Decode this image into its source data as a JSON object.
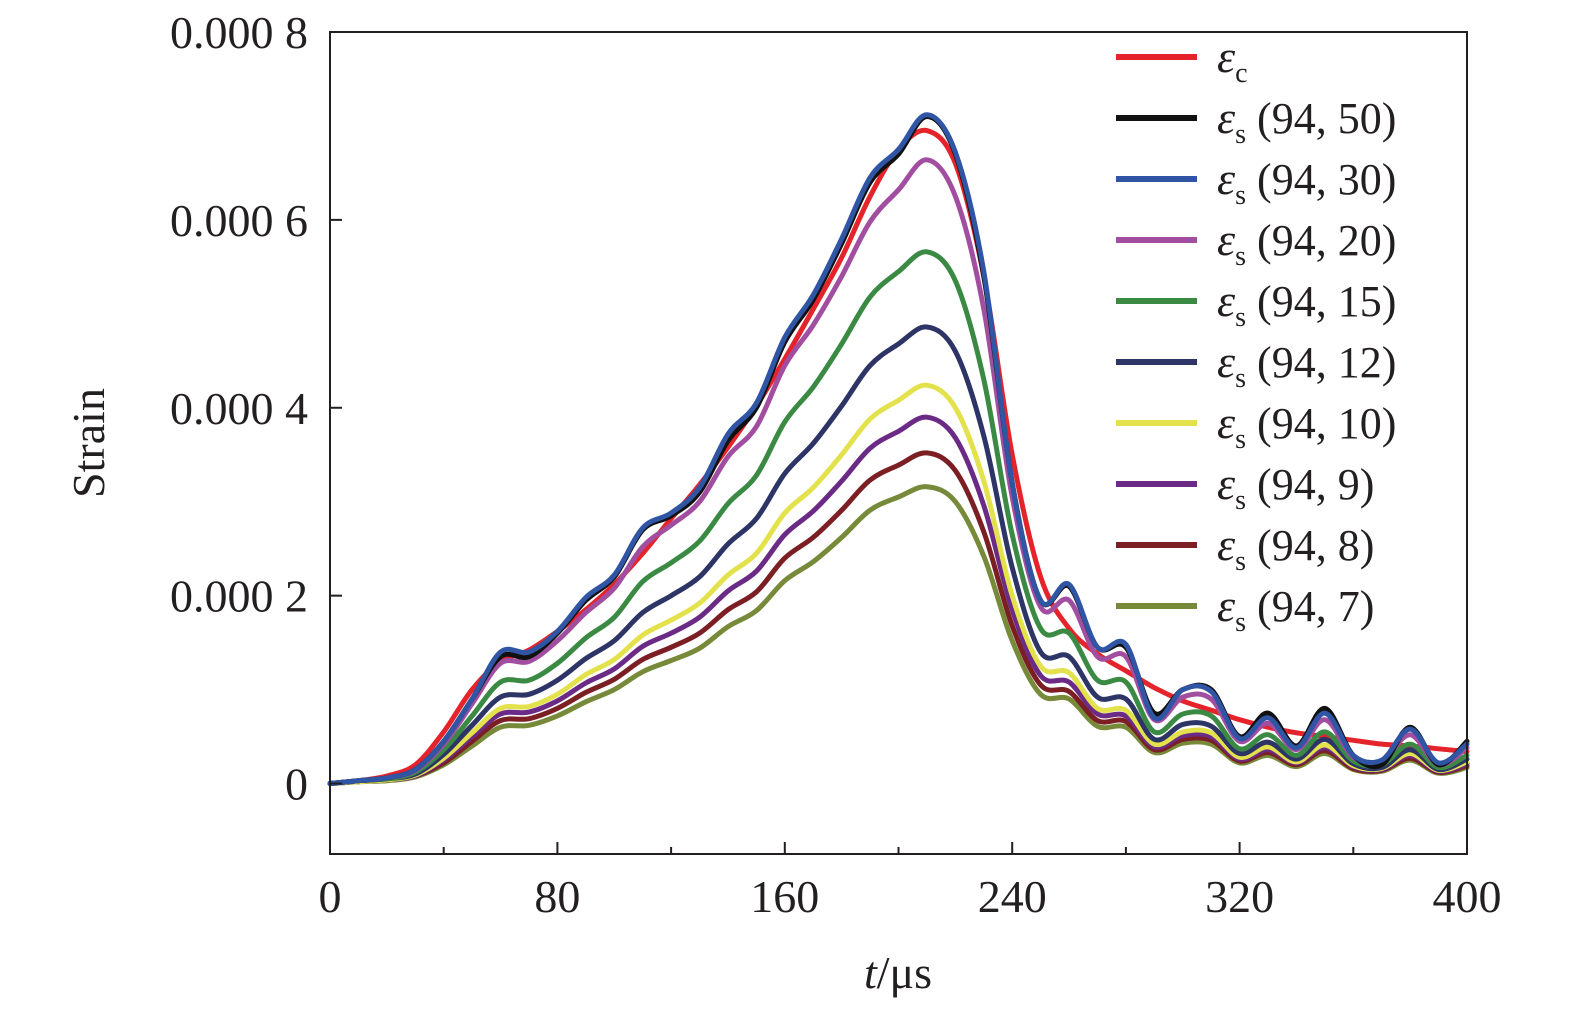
{
  "chart_data": {
    "type": "line",
    "xlabel_italic": "t",
    "xlabel_unit": "/μs",
    "ylabel": "Strain",
    "xlim": [
      0,
      400
    ],
    "ylim": [
      -7.5e-05,
      0.0008
    ],
    "x_ticks": [
      0,
      80,
      160,
      240,
      320,
      400
    ],
    "x_tick_labels": [
      "0",
      "80",
      "160",
      "240",
      "320",
      "400"
    ],
    "y_ticks": [
      0,
      0.0002,
      0.0004,
      0.0006,
      0.0008
    ],
    "y_tick_labels": [
      "0",
      "0.000 2",
      "0.000 4",
      "0.000 6",
      "0.000 8"
    ],
    "grid": false,
    "legend_position": "top-right",
    "legend_symbol": "ε",
    "x": [
      0,
      10,
      20,
      30,
      40,
      50,
      60,
      70,
      80,
      90,
      100,
      110,
      120,
      130,
      140,
      150,
      160,
      170,
      180,
      190,
      200,
      210,
      220,
      230,
      240,
      250,
      260,
      270,
      280,
      290,
      300,
      310,
      320,
      330,
      340,
      350,
      360,
      370,
      380,
      390,
      400
    ],
    "series": [
      {
        "sub": "c",
        "pair": "",
        "color": "#e4232b",
        "values": [
          0,
          3e-06,
          8e-06,
          2e-05,
          5.5e-05,
          0.0001,
          0.00013,
          0.000142,
          0.000162,
          0.000185,
          0.000212,
          0.000245,
          0.000282,
          0.000318,
          0.000358,
          0.000402,
          0.000452,
          0.000505,
          0.00056,
          0.000625,
          0.000675,
          0.000695,
          0.00066,
          0.00054,
          0.00035,
          0.00022,
          0.000165,
          0.000138,
          0.00012,
          0.000102,
          8.8e-05,
          7.8e-05,
          6.8e-05,
          6e-05,
          5.4e-05,
          5e-05,
          4.6e-05,
          4.2e-05,
          4e-05,
          3.7e-05,
          3.4e-05
        ]
      },
      {
        "sub": "s",
        "pair": " (94, 50)",
        "color": "#111111",
        "values": [
          0,
          3e-06,
          6e-06,
          1.5e-05,
          4.5e-05,
          9e-05,
          0.000135,
          0.000135,
          0.00016,
          0.000195,
          0.00022,
          0.00027,
          0.000285,
          0.00031,
          0.000365,
          0.0004,
          0.00047,
          0.000515,
          0.000575,
          0.00064,
          0.00067,
          0.00071,
          0.00067,
          0.00054,
          0.00032,
          0.000195,
          0.00021,
          0.000145,
          0.000145,
          7.5e-05,
          0.0001,
          0.0001,
          5e-05,
          7.5e-05,
          4e-05,
          8e-05,
          3e-05,
          2e-05,
          6e-05,
          2e-05,
          4.5e-05
        ]
      },
      {
        "sub": "s",
        "pair": " (94, 30)",
        "color": "#2f55a4",
        "values": [
          0,
          3e-06,
          6e-06,
          1.5e-05,
          4.5e-05,
          9e-05,
          0.00014,
          0.00014,
          0.000162,
          0.000198,
          0.000222,
          0.000272,
          0.000288,
          0.000315,
          0.000372,
          0.000405,
          0.000475,
          0.00052,
          0.00058,
          0.000645,
          0.000675,
          0.000712,
          0.000672,
          0.000545,
          0.00032,
          0.000195,
          0.000212,
          0.000145,
          0.000148,
          7e-05,
          0.0001,
          9.8e-05,
          4.8e-05,
          7e-05,
          3.8e-05,
          7.5e-05,
          3e-05,
          2.5e-05,
          5.8e-05,
          2.2e-05,
          4.2e-05
        ]
      },
      {
        "sub": "s",
        "pair": " (94, 20)",
        "color": "#a24ea0",
        "values": [
          0,
          3e-06,
          6e-06,
          1.4e-05,
          4.2e-05,
          8.5e-05,
          0.000128,
          0.00013,
          0.000152,
          0.000182,
          0.000208,
          0.000252,
          0.000275,
          0.0003,
          0.000348,
          0.00038,
          0.000445,
          0.000488,
          0.00054,
          0.000598,
          0.000632,
          0.000664,
          0.000625,
          0.000505,
          0.000305,
          0.000188,
          0.000195,
          0.000135,
          0.000135,
          6.8e-05,
          9.2e-05,
          9e-05,
          4.5e-05,
          6.4e-05,
          3.6e-05,
          6.8e-05,
          2.8e-05,
          2.4e-05,
          5.2e-05,
          2e-05,
          3.8e-05
        ]
      },
      {
        "sub": "s",
        "pair": " (94, 15)",
        "color": "#3a8a44",
        "values": [
          0,
          3e-06,
          5e-06,
          1.2e-05,
          3.6e-05,
          7.2e-05,
          0.000108,
          0.00011,
          0.000128,
          0.000155,
          0.000177,
          0.000215,
          0.000235,
          0.000258,
          0.000298,
          0.000328,
          0.000385,
          0.000422,
          0.000468,
          0.000518,
          0.000545,
          0.000566,
          0.000535,
          0.00043,
          0.000265,
          0.000165,
          0.00016,
          0.00011,
          0.000108,
          5.5e-05,
          7.4e-05,
          7.2e-05,
          3.7e-05,
          5.2e-05,
          3e-05,
          5.5e-05,
          2.4e-05,
          2e-05,
          4.2e-05,
          1.7e-05,
          3e-05
        ]
      },
      {
        "sub": "s",
        "pair": " (94, 12)",
        "color": "#2d3466",
        "values": [
          0,
          3e-06,
          5e-06,
          1e-05,
          3.1e-05,
          6.2e-05,
          9.2e-05,
          9.5e-05,
          0.00011,
          0.000133,
          0.000152,
          0.000182,
          0.0002,
          0.00022,
          0.000255,
          0.000282,
          0.00033,
          0.000362,
          0.000402,
          0.000445,
          0.000468,
          0.000486,
          0.00046,
          0.00037,
          0.00023,
          0.00014,
          0.000135,
          9.2e-05,
          9e-05,
          4.7e-05,
          6.3e-05,
          6.1e-05,
          3.2e-05,
          4.4e-05,
          2.6e-05,
          4.7e-05,
          2.1e-05,
          1.7e-05,
          3.6e-05,
          1.5e-05,
          2.6e-05
        ]
      },
      {
        "sub": "s",
        "pair": " (94, 10)",
        "color": "#e3e24c",
        "values": [
          0,
          2e-06,
          4e-06,
          9e-06,
          2.7e-05,
          5.4e-05,
          8e-05,
          8.2e-05,
          9.5e-05,
          0.000116,
          0.000132,
          0.000158,
          0.000174,
          0.000192,
          0.000222,
          0.000245,
          0.000288,
          0.000315,
          0.00035,
          0.000388,
          0.000408,
          0.000424,
          0.0004,
          0.000322,
          0.0002,
          0.000125,
          0.000118,
          8e-05,
          7.8e-05,
          4.2e-05,
          5.5e-05,
          5.4e-05,
          2.8e-05,
          3.9e-05,
          2.3e-05,
          4.1e-05,
          1.9e-05,
          1.6e-05,
          3.2e-05,
          1.4e-05,
          2.3e-05
        ]
      },
      {
        "sub": "s",
        "pair": " (94, 9)",
        "color": "#6b2a85",
        "values": [
          0,
          2e-06,
          4e-06,
          8e-06,
          2.5e-05,
          5e-05,
          7.4e-05,
          7.6e-05,
          8.8e-05,
          0.000107,
          0.000122,
          0.000146,
          0.00016,
          0.000177,
          0.000205,
          0.000226,
          0.000265,
          0.00029,
          0.000322,
          0.000357,
          0.000375,
          0.00039,
          0.000368,
          0.000296,
          0.000185,
          0.000115,
          0.000108,
          7.4e-05,
          7.2e-05,
          3.9e-05,
          5.1e-05,
          5e-05,
          2.6e-05,
          3.6e-05,
          2.2e-05,
          3.8e-05,
          1.8e-05,
          1.5e-05,
          3e-05,
          1.3e-05,
          2.1e-05
        ]
      },
      {
        "sub": "s",
        "pair": " (94, 8)",
        "color": "#7b1f24",
        "values": [
          0,
          2e-06,
          4e-06,
          8e-06,
          2.2e-05,
          4.5e-05,
          6.7e-05,
          6.9e-05,
          8e-05,
          9.7e-05,
          0.000111,
          0.000132,
          0.000145,
          0.00016,
          0.000185,
          0.000204,
          0.00024,
          0.000262,
          0.000291,
          0.000323,
          0.000339,
          0.000352,
          0.000333,
          0.000268,
          0.000168,
          0.000105,
          9.8e-05,
          6.7e-05,
          6.6e-05,
          3.6e-05,
          4.7e-05,
          4.6e-05,
          2.4e-05,
          3.3e-05,
          2e-05,
          3.5e-05,
          1.6e-05,
          1.4e-05,
          2.7e-05,
          1.2e-05,
          1.9e-05
        ]
      },
      {
        "sub": "s",
        "pair": " (94, 7)",
        "color": "#778a3a",
        "values": [
          0,
          2e-06,
          3e-06,
          7e-06,
          2e-05,
          4e-05,
          6e-05,
          6.2e-05,
          7.2e-05,
          8.7e-05,
          0.0001,
          0.000119,
          0.000131,
          0.000144,
          0.000167,
          0.000184,
          0.000216,
          0.000236,
          0.000262,
          0.000291,
          0.000305,
          0.000316,
          0.0003,
          0.000242,
          0.000152,
          9.5e-05,
          9e-05,
          6.1e-05,
          6e-05,
          3.3e-05,
          4.3e-05,
          4.2e-05,
          2.2e-05,
          3e-05,
          1.8e-05,
          3.2e-05,
          1.5e-05,
          1.3e-05,
          2.5e-05,
          1.1e-05,
          1.7e-05
        ]
      }
    ]
  }
}
